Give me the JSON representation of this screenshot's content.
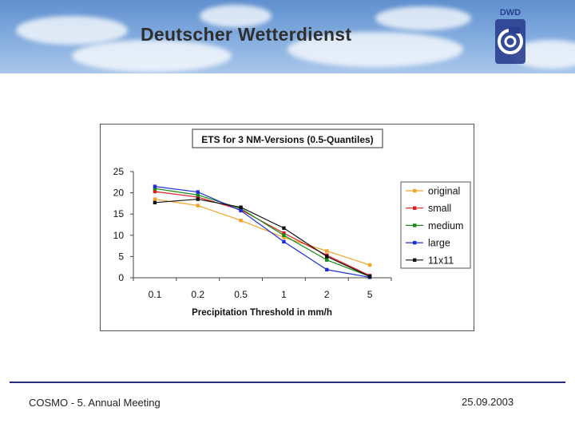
{
  "header": {
    "title": "Deutscher Wetterdienst",
    "logo_text": "DWD"
  },
  "chart_data": {
    "type": "line",
    "title": "ETS for 3 NM-Versions (0.5-Quantiles)",
    "xlabel": "Precipitation Threshold in mm/h",
    "ylabel": "",
    "categories": [
      "0.1",
      "0.2",
      "0.5",
      "1",
      "2",
      "5"
    ],
    "ylim": [
      0,
      25
    ],
    "yticks": [
      "0",
      "5",
      "10",
      "15",
      "20",
      "25"
    ],
    "legend_position": "right",
    "series": [
      {
        "name": "original",
        "color": "#f2a428",
        "values": [
          18.5,
          17.0,
          13.5,
          9.5,
          6.3,
          3.0
        ]
      },
      {
        "name": "small",
        "color": "#e01b1b",
        "values": [
          20.3,
          19.0,
          16.0,
          10.5,
          5.3,
          0.5
        ]
      },
      {
        "name": "medium",
        "color": "#1a8a1a",
        "values": [
          21.0,
          19.5,
          16.3,
          10.0,
          4.2,
          0.3
        ]
      },
      {
        "name": "large",
        "color": "#1c2fd6",
        "values": [
          21.5,
          20.2,
          15.8,
          8.5,
          1.9,
          0.1
        ]
      },
      {
        "name": "11x11",
        "color": "#111111",
        "values": [
          17.7,
          18.5,
          16.6,
          11.7,
          5.0,
          0.3
        ]
      }
    ]
  },
  "footer": {
    "left": "COSMO - 5. Annual Meeting",
    "right": "25.09.2003"
  }
}
